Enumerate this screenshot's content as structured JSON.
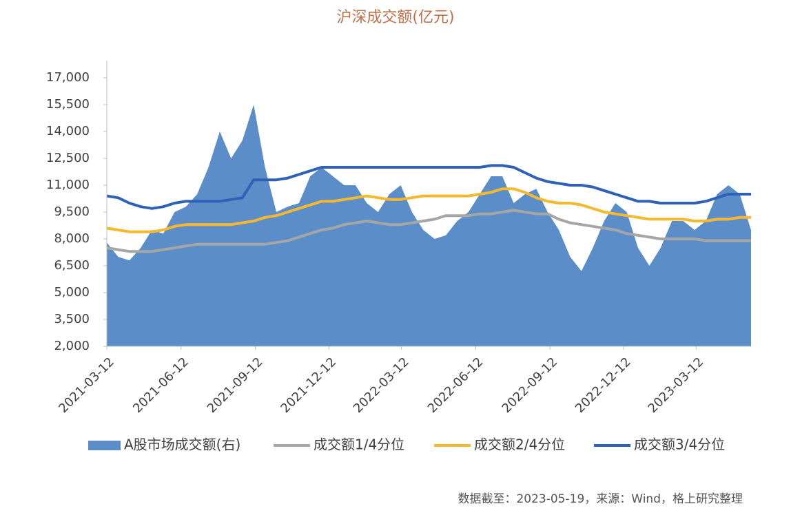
{
  "chart_data": {
    "type": "area-line",
    "title": "沪深成交额(亿元)",
    "note": "数据截至：2023-05-19，来源：Wind，格上研究整理",
    "x": [
      "2021-03-12",
      "2021-03-26",
      "2021-04-09",
      "2021-04-23",
      "2021-05-07",
      "2021-05-21",
      "2021-06-04",
      "2021-06-18",
      "2021-07-02",
      "2021-07-16",
      "2021-07-30",
      "2021-08-13",
      "2021-08-27",
      "2021-09-10",
      "2021-09-24",
      "2021-10-08",
      "2021-10-22",
      "2021-11-05",
      "2021-11-19",
      "2021-12-03",
      "2021-12-17",
      "2021-12-31",
      "2022-01-14",
      "2022-01-28",
      "2022-02-11",
      "2022-02-25",
      "2022-03-11",
      "2022-03-25",
      "2022-04-08",
      "2022-04-22",
      "2022-05-06",
      "2022-05-20",
      "2022-06-03",
      "2022-06-17",
      "2022-07-01",
      "2022-07-15",
      "2022-07-29",
      "2022-08-12",
      "2022-08-26",
      "2022-09-09",
      "2022-09-23",
      "2022-10-07",
      "2022-10-21",
      "2022-11-04",
      "2022-11-18",
      "2022-12-02",
      "2022-12-16",
      "2022-12-30",
      "2023-01-13",
      "2023-01-27",
      "2023-02-10",
      "2023-02-24",
      "2023-03-10",
      "2023-03-24",
      "2023-04-07",
      "2023-04-21",
      "2023-05-05",
      "2023-05-19"
    ],
    "series": [
      {
        "name": "A股市场成交额(右)",
        "kind": "area",
        "color": "#5b8ec8",
        "values": [
          7800,
          7000,
          6800,
          7500,
          8500,
          8300,
          9500,
          9800,
          10500,
          12000,
          14000,
          12500,
          13500,
          15500,
          12000,
          9500,
          9800,
          10000,
          11500,
          12000,
          11500,
          11000,
          11000,
          10000,
          9500,
          10500,
          11000,
          9500,
          8500,
          8000,
          8200,
          9000,
          9500,
          10500,
          11500,
          11500,
          10000,
          10500,
          10800,
          9500,
          8500,
          7000,
          6200,
          7500,
          9000,
          10000,
          9500,
          7500,
          6500,
          7500,
          9000,
          9000,
          8500,
          9000,
          10500,
          11000,
          10500,
          8500
        ]
      },
      {
        "name": "成交额1/4分位",
        "kind": "line",
        "color": "#a6a6a6",
        "values": [
          7500,
          7400,
          7300,
          7300,
          7300,
          7400,
          7500,
          7600,
          7700,
          7700,
          7700,
          7700,
          7700,
          7700,
          7700,
          7800,
          7900,
          8100,
          8300,
          8500,
          8600,
          8800,
          8900,
          9000,
          8900,
          8800,
          8800,
          8900,
          9000,
          9100,
          9300,
          9300,
          9300,
          9400,
          9400,
          9500,
          9600,
          9500,
          9400,
          9400,
          9100,
          8900,
          8800,
          8700,
          8600,
          8500,
          8300,
          8200,
          8100,
          8000,
          8000,
          8000,
          8000,
          7900,
          7900,
          7900,
          7900,
          7900
        ]
      },
      {
        "name": "成交额2/4分位",
        "kind": "line",
        "color": "#f5b82e",
        "values": [
          8600,
          8500,
          8400,
          8400,
          8400,
          8500,
          8700,
          8800,
          8800,
          8800,
          8800,
          8800,
          8900,
          9000,
          9200,
          9300,
          9500,
          9700,
          9900,
          10100,
          10100,
          10200,
          10300,
          10400,
          10300,
          10200,
          10200,
          10300,
          10400,
          10400,
          10400,
          10400,
          10400,
          10500,
          10600,
          10800,
          10800,
          10600,
          10300,
          10100,
          10000,
          10000,
          9900,
          9700,
          9500,
          9400,
          9300,
          9200,
          9100,
          9100,
          9100,
          9100,
          9000,
          9000,
          9100,
          9100,
          9200,
          9200
        ]
      },
      {
        "name": "成交额3/4分位",
        "kind": "line",
        "color": "#2e62b8",
        "values": [
          10400,
          10300,
          10000,
          9800,
          9700,
          9800,
          10000,
          10100,
          10100,
          10100,
          10100,
          10200,
          10300,
          11300,
          11300,
          11300,
          11400,
          11600,
          11800,
          12000,
          12000,
          12000,
          12000,
          12000,
          12000,
          12000,
          12000,
          12000,
          12000,
          12000,
          12000,
          12000,
          12000,
          12000,
          12100,
          12100,
          12000,
          11700,
          11400,
          11200,
          11100,
          11000,
          11000,
          10900,
          10700,
          10500,
          10300,
          10100,
          10100,
          10000,
          10000,
          10000,
          10000,
          10100,
          10300,
          10500,
          10500,
          10500
        ]
      }
    ],
    "xlim": [
      "2021-03-12",
      "2023-05-19"
    ],
    "xticks": [
      "2021-03-12",
      "2021-06-12",
      "2021-09-12",
      "2021-12-12",
      "2022-03-12",
      "2022-06-12",
      "2022-09-12",
      "2022-12-12",
      "2023-03-12"
    ],
    "ylim": [
      2000,
      17000
    ],
    "yticks": [
      {
        "value": 2000,
        "label": "2,000"
      },
      {
        "value": 3500,
        "label": "3,500"
      },
      {
        "value": 5000,
        "label": "5,000"
      },
      {
        "value": 6500,
        "label": "6,500"
      },
      {
        "value": 8000,
        "label": "8,000"
      },
      {
        "value": 9500,
        "label": "9,500"
      },
      {
        "value": 11000,
        "label": "11,000"
      },
      {
        "value": 12500,
        "label": "12,500"
      },
      {
        "value": 14000,
        "label": "14,000"
      },
      {
        "value": 15500,
        "label": "15,500"
      },
      {
        "value": 17000,
        "label": "17,000"
      }
    ],
    "grid": false,
    "legend": "bottom"
  }
}
